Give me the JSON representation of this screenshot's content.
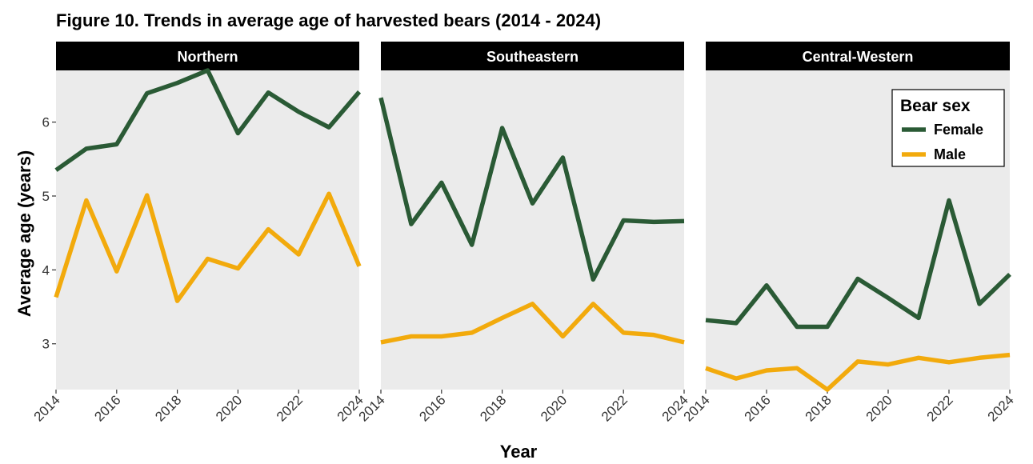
{
  "title": "Figure 10. Trends in average age of harvested bears (2014 - 2024)",
  "x_label": "Year",
  "y_label": "Average age (years)",
  "legend": {
    "title": "Bear sex",
    "position": "top-right"
  },
  "chart_data": [
    {
      "type": "line",
      "title": "Northern",
      "x": [
        2014,
        2015,
        2016,
        2017,
        2018,
        2019,
        2020,
        2021,
        2022,
        2023,
        2024
      ],
      "series": [
        {
          "name": "Female",
          "color": "#2a5a35",
          "values": [
            5.35,
            5.64,
            5.7,
            6.39,
            6.53,
            6.7,
            5.85,
            6.4,
            6.14,
            5.93,
            6.41
          ]
        },
        {
          "name": "Male",
          "color": "#f2aa0c",
          "values": [
            3.63,
            4.94,
            3.98,
            5.01,
            3.58,
            4.15,
            4.02,
            4.55,
            4.21,
            5.03,
            4.05
          ]
        }
      ],
      "xlim": [
        2014,
        2024
      ],
      "xticks": [
        2014,
        2016,
        2018,
        2020,
        2022,
        2024
      ],
      "ylim": [
        2.38,
        6.7
      ],
      "yticks": [
        3,
        4,
        5,
        6
      ],
      "grid": false
    },
    {
      "type": "line",
      "title": "Southeastern",
      "x": [
        2014,
        2015,
        2016,
        2017,
        2018,
        2019,
        2020,
        2021,
        2022,
        2023,
        2024
      ],
      "series": [
        {
          "name": "Female",
          "color": "#2a5a35",
          "values": [
            6.33,
            4.62,
            5.18,
            4.34,
            5.92,
            4.9,
            5.52,
            3.87,
            4.67,
            4.65,
            4.66
          ]
        },
        {
          "name": "Male",
          "color": "#f2aa0c",
          "values": [
            3.02,
            3.1,
            3.1,
            3.15,
            3.35,
            3.54,
            3.1,
            3.54,
            3.15,
            3.12,
            3.02
          ]
        }
      ],
      "xlim": [
        2014,
        2024
      ],
      "xticks": [
        2014,
        2016,
        2018,
        2020,
        2022,
        2024
      ],
      "ylim": [
        2.38,
        6.7
      ],
      "grid": false
    },
    {
      "type": "line",
      "title": "Central-Western",
      "x": [
        2014,
        2015,
        2016,
        2017,
        2018,
        2019,
        2020,
        2021,
        2022,
        2023,
        2024
      ],
      "series": [
        {
          "name": "Female",
          "color": "#2a5a35",
          "values": [
            3.32,
            3.28,
            3.79,
            3.23,
            3.23,
            3.88,
            3.62,
            3.35,
            4.94,
            3.54,
            3.94
          ]
        },
        {
          "name": "Male",
          "color": "#f2aa0c",
          "values": [
            2.67,
            2.53,
            2.64,
            2.67,
            2.38,
            2.76,
            2.72,
            2.81,
            2.75,
            2.81,
            2.85
          ]
        }
      ],
      "xlim": [
        2014,
        2024
      ],
      "xticks": [
        2014,
        2016,
        2018,
        2020,
        2022,
        2024
      ],
      "ylim": [
        2.38,
        6.7
      ],
      "grid": false
    }
  ]
}
